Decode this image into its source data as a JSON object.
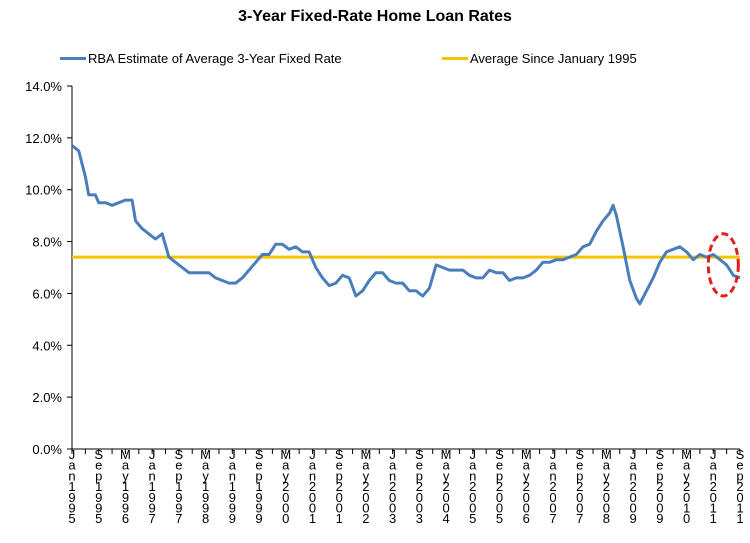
{
  "chart_data": {
    "type": "line",
    "title": "3-Year Fixed-Rate Home Loan Rates",
    "xlabel": "",
    "ylabel": "",
    "ylim": [
      0,
      14
    ],
    "yticks": [
      "0.0%",
      "2.0%",
      "4.0%",
      "6.0%",
      "8.0%",
      "10.0%",
      "12.0%",
      "14.0%"
    ],
    "xlim": [
      "1995-01",
      "2011-09"
    ],
    "xticks": [
      {
        "date": "1995-01",
        "label": "Jan1995"
      },
      {
        "date": "1995-09",
        "label": "Sep1995"
      },
      {
        "date": "1996-05",
        "label": "May1996"
      },
      {
        "date": "1997-01",
        "label": "Jan1997"
      },
      {
        "date": "1997-09",
        "label": "Sep1997"
      },
      {
        "date": "1998-05",
        "label": "May1998"
      },
      {
        "date": "1999-01",
        "label": "Jan1999"
      },
      {
        "date": "1999-09",
        "label": "Sep1999"
      },
      {
        "date": "2000-05",
        "label": "May2000"
      },
      {
        "date": "2001-01",
        "label": "Jan2001"
      },
      {
        "date": "2001-09",
        "label": "Sep2001"
      },
      {
        "date": "2002-05",
        "label": "May2002"
      },
      {
        "date": "2003-01",
        "label": "Jan2003"
      },
      {
        "date": "2003-09",
        "label": "Sep2003"
      },
      {
        "date": "2004-05",
        "label": "May2004"
      },
      {
        "date": "2005-01",
        "label": "Jan2005"
      },
      {
        "date": "2005-09",
        "label": "Sep2005"
      },
      {
        "date": "2006-05",
        "label": "May2006"
      },
      {
        "date": "2007-01",
        "label": "Jan2007"
      },
      {
        "date": "2007-09",
        "label": "Sep2007"
      },
      {
        "date": "2008-05",
        "label": "May2008"
      },
      {
        "date": "2009-01",
        "label": "Jan2009"
      },
      {
        "date": "2009-09",
        "label": "Sep2009"
      },
      {
        "date": "2010-05",
        "label": "May2010"
      },
      {
        "date": "2011-01",
        "label": "Jan2011"
      },
      {
        "date": "2011-09",
        "label": "Sep2011"
      }
    ],
    "legend_position": "top",
    "grid": false,
    "series": [
      {
        "name": "RBA Estimate of Average 3-Year Fixed Rate",
        "color": "#4a7ebb",
        "points": [
          [
            "1995-01",
            11.7
          ],
          [
            "1995-03",
            11.5
          ],
          [
            "1995-05",
            10.5
          ],
          [
            "1995-06",
            9.8
          ],
          [
            "1995-08",
            9.8
          ],
          [
            "1995-09",
            9.5
          ],
          [
            "1995-11",
            9.5
          ],
          [
            "1996-01",
            9.4
          ],
          [
            "1996-03",
            9.5
          ],
          [
            "1996-05",
            9.6
          ],
          [
            "1996-07",
            9.6
          ],
          [
            "1996-08",
            8.8
          ],
          [
            "1996-10",
            8.5
          ],
          [
            "1996-12",
            8.3
          ],
          [
            "1997-02",
            8.1
          ],
          [
            "1997-04",
            8.3
          ],
          [
            "1997-06",
            7.4
          ],
          [
            "1997-08",
            7.2
          ],
          [
            "1997-10",
            7.0
          ],
          [
            "1997-12",
            6.8
          ],
          [
            "1998-02",
            6.8
          ],
          [
            "1998-04",
            6.8
          ],
          [
            "1998-06",
            6.8
          ],
          [
            "1998-08",
            6.6
          ],
          [
            "1998-10",
            6.5
          ],
          [
            "1998-12",
            6.4
          ],
          [
            "1999-02",
            6.4
          ],
          [
            "1999-04",
            6.6
          ],
          [
            "1999-06",
            6.9
          ],
          [
            "1999-08",
            7.2
          ],
          [
            "1999-10",
            7.5
          ],
          [
            "1999-12",
            7.5
          ],
          [
            "2000-02",
            7.9
          ],
          [
            "2000-04",
            7.9
          ],
          [
            "2000-06",
            7.7
          ],
          [
            "2000-08",
            7.8
          ],
          [
            "2000-10",
            7.6
          ],
          [
            "2000-12",
            7.6
          ],
          [
            "2001-02",
            7.0
          ],
          [
            "2001-04",
            6.6
          ],
          [
            "2001-06",
            6.3
          ],
          [
            "2001-08",
            6.4
          ],
          [
            "2001-10",
            6.7
          ],
          [
            "2001-12",
            6.6
          ],
          [
            "2002-02",
            5.9
          ],
          [
            "2002-04",
            6.1
          ],
          [
            "2002-06",
            6.5
          ],
          [
            "2002-08",
            6.8
          ],
          [
            "2002-10",
            6.8
          ],
          [
            "2002-12",
            6.5
          ],
          [
            "2003-02",
            6.4
          ],
          [
            "2003-04",
            6.4
          ],
          [
            "2003-06",
            6.1
          ],
          [
            "2003-08",
            6.1
          ],
          [
            "2003-10",
            5.9
          ],
          [
            "2003-12",
            6.2
          ],
          [
            "2004-02",
            7.1
          ],
          [
            "2004-04",
            7.0
          ],
          [
            "2004-06",
            6.9
          ],
          [
            "2004-08",
            6.9
          ],
          [
            "2004-10",
            6.9
          ],
          [
            "2004-12",
            6.7
          ],
          [
            "2005-02",
            6.6
          ],
          [
            "2005-04",
            6.6
          ],
          [
            "2005-06",
            6.9
          ],
          [
            "2005-08",
            6.8
          ],
          [
            "2005-10",
            6.8
          ],
          [
            "2005-12",
            6.5
          ],
          [
            "2006-02",
            6.6
          ],
          [
            "2006-04",
            6.6
          ],
          [
            "2006-06",
            6.7
          ],
          [
            "2006-08",
            6.9
          ],
          [
            "2006-10",
            7.2
          ],
          [
            "2006-12",
            7.2
          ],
          [
            "2007-02",
            7.3
          ],
          [
            "2007-04",
            7.3
          ],
          [
            "2007-06",
            7.4
          ],
          [
            "2007-08",
            7.5
          ],
          [
            "2007-10",
            7.8
          ],
          [
            "2007-12",
            7.9
          ],
          [
            "2008-02",
            8.4
          ],
          [
            "2008-04",
            8.8
          ],
          [
            "2008-06",
            9.1
          ],
          [
            "2008-07",
            9.4
          ],
          [
            "2008-08",
            9.0
          ],
          [
            "2008-10",
            7.8
          ],
          [
            "2008-12",
            6.5
          ],
          [
            "2009-02",
            5.8
          ],
          [
            "2009-03",
            5.6
          ],
          [
            "2009-05",
            6.1
          ],
          [
            "2009-07",
            6.6
          ],
          [
            "2009-09",
            7.2
          ],
          [
            "2009-11",
            7.6
          ],
          [
            "2010-01",
            7.7
          ],
          [
            "2010-03",
            7.8
          ],
          [
            "2010-05",
            7.6
          ],
          [
            "2010-07",
            7.3
          ],
          [
            "2010-09",
            7.5
          ],
          [
            "2010-11",
            7.4
          ],
          [
            "2011-01",
            7.5
          ],
          [
            "2011-03",
            7.3
          ],
          [
            "2011-05",
            7.1
          ],
          [
            "2011-07",
            6.7
          ],
          [
            "2011-09",
            6.6
          ]
        ]
      },
      {
        "name": "Average Since January 1995",
        "color": "#f5c400",
        "points": [
          [
            "1995-01",
            7.4
          ],
          [
            "2011-09",
            7.4
          ]
        ]
      }
    ],
    "annotation": {
      "type": "ellipse",
      "color": "#e0201b",
      "center_date": "2011-04",
      "center_value": 7.1,
      "span_months": 9,
      "span_value": 2.4
    }
  }
}
